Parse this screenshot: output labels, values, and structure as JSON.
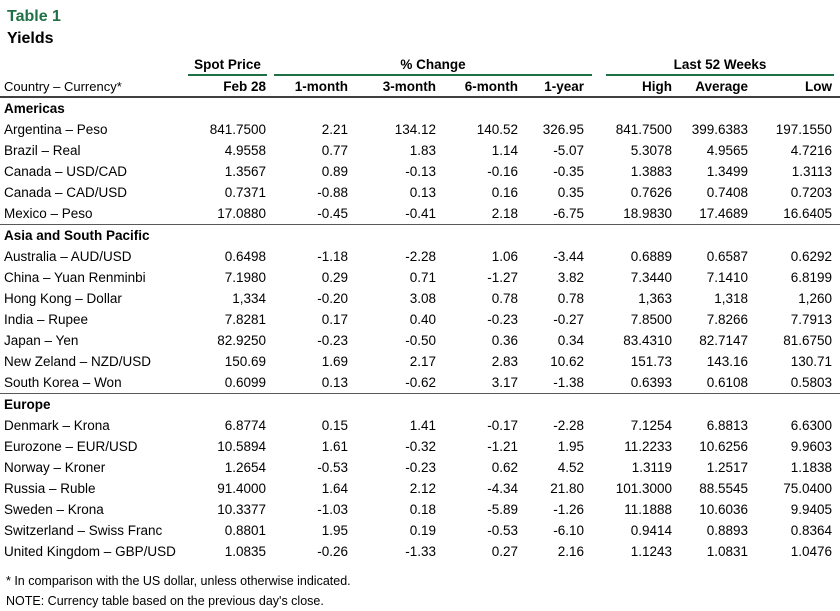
{
  "page": {
    "title": "Table 1",
    "subtitle": "Yields"
  },
  "colors": {
    "accent_green": "#1F7145",
    "header_rule": "#404040",
    "section_rule": "#595959"
  },
  "table": {
    "group_headers": {
      "spot_price": "Spot Price",
      "pct_change": "% Change",
      "last_52_weeks": "Last 52 Weeks"
    },
    "columns": [
      "Country – Currency*",
      "Feb 28",
      "1-month",
      "3-month",
      "6-month",
      "1-year",
      "High",
      "Average",
      "Low"
    ],
    "sections": [
      {
        "name": "Americas",
        "rows": [
          {
            "label": "Argentina – Peso",
            "values": [
              "841.7500",
              "2.21",
              "134.12",
              "140.52",
              "326.95",
              "841.7500",
              "399.6383",
              "197.1550"
            ]
          },
          {
            "label": "Brazil – Real",
            "values": [
              "4.9558",
              "0.77",
              "1.83",
              "1.14",
              "-5.07",
              "5.3078",
              "4.9565",
              "4.7216"
            ]
          },
          {
            "label": "Canada – USD/CAD",
            "values": [
              "1.3567",
              "0.89",
              "-0.13",
              "-0.16",
              "-0.35",
              "1.3883",
              "1.3499",
              "1.3113"
            ]
          },
          {
            "label": "Canada – CAD/USD",
            "values": [
              "0.7371",
              "-0.88",
              "0.13",
              "0.16",
              "0.35",
              "0.7626",
              "0.7408",
              "0.7203"
            ]
          },
          {
            "label": "Mexico – Peso",
            "values": [
              "17.0880",
              "-0.45",
              "-0.41",
              "2.18",
              "-6.75",
              "18.9830",
              "17.4689",
              "16.6405"
            ]
          }
        ]
      },
      {
        "name": "Asia and South Pacific",
        "rows": [
          {
            "label": "Australia – AUD/USD",
            "values": [
              "0.6498",
              "-1.18",
              "-2.28",
              "1.06",
              "-3.44",
              "0.6889",
              "0.6587",
              "0.6292"
            ]
          },
          {
            "label": "China – Yuan Renminbi",
            "values": [
              "7.1980",
              "0.29",
              "0.71",
              "-1.27",
              "3.82",
              "7.3440",
              "7.1410",
              "6.8199"
            ]
          },
          {
            "label": "Hong Kong – Dollar",
            "values": [
              "1,334",
              "-0.20",
              "3.08",
              "0.78",
              "0.78",
              "1,363",
              "1,318",
              "1,260"
            ]
          },
          {
            "label": "India – Rupee",
            "values": [
              "7.8281",
              "0.17",
              "0.40",
              "-0.23",
              "-0.27",
              "7.8500",
              "7.8266",
              "7.7913"
            ]
          },
          {
            "label": "Japan – Yen",
            "values": [
              "82.9250",
              "-0.23",
              "-0.50",
              "0.36",
              "0.34",
              "83.4310",
              "82.7147",
              "81.6750"
            ]
          },
          {
            "label": "New Zeland – NZD/USD",
            "values": [
              "150.69",
              "1.69",
              "2.17",
              "2.83",
              "10.62",
              "151.73",
              "143.16",
              "130.71"
            ]
          },
          {
            "label": "South Korea – Won",
            "values": [
              "0.6099",
              "0.13",
              "-0.62",
              "3.17",
              "-1.38",
              "0.6393",
              "0.6108",
              "0.5803"
            ]
          }
        ]
      },
      {
        "name": "Europe",
        "rows": [
          {
            "label": "Denmark – Krona",
            "values": [
              "6.8774",
              "0.15",
              "1.41",
              "-0.17",
              "-2.28",
              "7.1254",
              "6.8813",
              "6.6300"
            ]
          },
          {
            "label": "Eurozone – EUR/USD",
            "values": [
              "10.5894",
              "1.61",
              "-0.32",
              "-1.21",
              "1.95",
              "11.2233",
              "10.6256",
              "9.9603"
            ]
          },
          {
            "label": "Norway – Kroner",
            "values": [
              "1.2654",
              "-0.53",
              "-0.23",
              "0.62",
              "4.52",
              "1.3119",
              "1.2517",
              "1.1838"
            ]
          },
          {
            "label": "Russia – Ruble",
            "values": [
              "91.4000",
              "1.64",
              "2.12",
              "-4.34",
              "21.80",
              "101.3000",
              "88.5545",
              "75.0400"
            ]
          },
          {
            "label": "Sweden – Krona",
            "values": [
              "10.3377",
              "-1.03",
              "0.18",
              "-5.89",
              "-1.26",
              "11.1888",
              "10.6036",
              "9.9405"
            ]
          },
          {
            "label": "Switzerland – Swiss Franc",
            "values": [
              "0.8801",
              "1.95",
              "0.19",
              "-0.53",
              "-6.10",
              "0.9414",
              "0.8893",
              "0.8364"
            ]
          },
          {
            "label": "United Kingdom – GBP/USD",
            "values": [
              "1.0835",
              "-0.26",
              "-1.33",
              "0.27",
              "2.16",
              "1.1243",
              "1.0831",
              "1.0476"
            ]
          }
        ]
      }
    ]
  },
  "footnotes": {
    "comparison": "* In comparison with the US dollar, unless otherwise indicated.",
    "note": "NOTE: Currency table based on the previous day's close."
  }
}
